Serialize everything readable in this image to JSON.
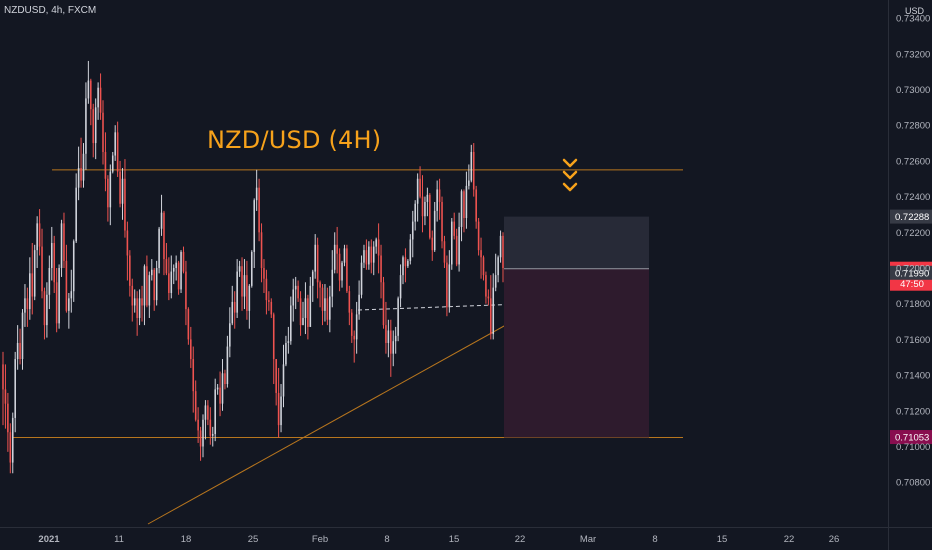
{
  "header": {
    "symbol": "NZDUSD, 4h, FXCM",
    "currency": "USD"
  },
  "annotation": {
    "title": "NZD/USD (4H)"
  },
  "chart_data": {
    "type": "candlestick",
    "yaxis": {
      "range": [
        0.7066,
        0.7329
      ],
      "ticks": [
        "0.73200",
        "0.73000",
        "0.72800",
        "0.72600",
        "0.72400",
        "0.72200",
        "0.72000",
        "0.71800",
        "0.71600",
        "0.71400",
        "0.71200",
        "0.71000",
        "0.70800"
      ],
      "top_partial_label": "0.73400"
    },
    "xaxis": {
      "ticks": [
        "2021",
        "11",
        "18",
        "25",
        "Feb",
        "8",
        "15",
        "22",
        "Mar",
        "8",
        "15",
        "22",
        "26"
      ]
    },
    "price_labels": [
      {
        "text": "0.72288",
        "price": 0.72288,
        "bg": "#363a45",
        "color": "#ffffff"
      },
      {
        "text": "0.71996",
        "price": 0.71996,
        "bg": "#f23645",
        "color": "#ffffff"
      },
      {
        "text": "47:50",
        "price": 0.71996,
        "bg": "#f23645",
        "color": "#ffffff",
        "below": true
      },
      {
        "text": "0.71990",
        "price": 0.7199,
        "bg": "#363a45",
        "color": "#ffffff",
        "nudge": 20
      },
      {
        "text": "0.71053",
        "price": 0.71053,
        "bg": "#880e4f",
        "color": "#ffffff"
      }
    ],
    "levels": {
      "resistance": 0.7255,
      "support": 0.71053,
      "entry": 0.71996,
      "target_top": 0.72288
    },
    "colors": {
      "up": "#d1d4dc",
      "down": "#ef5350",
      "bg": "#131722",
      "level": "#b8761e",
      "arrow": "#f7a21b"
    },
    "candles": [
      [
        0.7146,
        0.7132,
        0.7153,
        0.7112
      ],
      [
        0.7132,
        0.7124,
        0.7146,
        0.711
      ],
      [
        0.7124,
        0.7108,
        0.713,
        0.7097
      ],
      [
        0.7108,
        0.7091,
        0.7113,
        0.7085
      ],
      [
        0.7091,
        0.7116,
        0.7119,
        0.7085
      ],
      [
        0.7116,
        0.7149,
        0.7153,
        0.7108
      ],
      [
        0.7149,
        0.7158,
        0.7168,
        0.7143
      ],
      [
        0.7158,
        0.7149,
        0.7166,
        0.7146
      ],
      [
        0.7149,
        0.7175,
        0.7177,
        0.7143
      ],
      [
        0.7175,
        0.7183,
        0.7191,
        0.7167
      ],
      [
        0.7183,
        0.7177,
        0.7189,
        0.7167
      ],
      [
        0.7177,
        0.7197,
        0.7206,
        0.7171
      ],
      [
        0.7197,
        0.7184,
        0.7214,
        0.7174
      ],
      [
        0.7184,
        0.721,
        0.7213,
        0.7182
      ],
      [
        0.721,
        0.7225,
        0.7229,
        0.72
      ],
      [
        0.7225,
        0.7212,
        0.7233,
        0.7207
      ],
      [
        0.7212,
        0.7187,
        0.7222,
        0.7183
      ],
      [
        0.7187,
        0.7168,
        0.7189,
        0.716
      ],
      [
        0.7168,
        0.7185,
        0.7192,
        0.7161
      ],
      [
        0.7185,
        0.72,
        0.7207,
        0.7177
      ],
      [
        0.72,
        0.7214,
        0.7223,
        0.7193
      ],
      [
        0.7214,
        0.7192,
        0.7218,
        0.7186
      ],
      [
        0.7192,
        0.7169,
        0.72,
        0.7164
      ],
      [
        0.7169,
        0.72,
        0.7202,
        0.7166
      ],
      [
        0.72,
        0.7225,
        0.7227,
        0.7195
      ],
      [
        0.7225,
        0.7204,
        0.7231,
        0.72
      ],
      [
        0.7204,
        0.7176,
        0.7213,
        0.7175
      ],
      [
        0.7176,
        0.7183,
        0.7186,
        0.7166
      ],
      [
        0.7183,
        0.7187,
        0.7199,
        0.7175
      ],
      [
        0.7187,
        0.7215,
        0.7216,
        0.7181
      ],
      [
        0.7215,
        0.7245,
        0.7253,
        0.7214
      ],
      [
        0.7245,
        0.7256,
        0.7268,
        0.7238
      ],
      [
        0.7256,
        0.7249,
        0.7273,
        0.7245
      ],
      [
        0.7249,
        0.7264,
        0.727,
        0.7245
      ],
      [
        0.7264,
        0.7295,
        0.7304,
        0.7255
      ],
      [
        0.7295,
        0.7305,
        0.7316,
        0.7292
      ],
      [
        0.7305,
        0.7289,
        0.7306,
        0.728
      ],
      [
        0.7289,
        0.727,
        0.7292,
        0.7262
      ],
      [
        0.727,
        0.729,
        0.7295,
        0.7261
      ],
      [
        0.729,
        0.7301,
        0.7304,
        0.7283
      ],
      [
        0.7301,
        0.7287,
        0.7309,
        0.7283
      ],
      [
        0.7287,
        0.7265,
        0.7294,
        0.7258
      ],
      [
        0.7265,
        0.725,
        0.7276,
        0.7243
      ],
      [
        0.725,
        0.7234,
        0.7252,
        0.7226
      ],
      [
        0.7234,
        0.7254,
        0.7258,
        0.7224
      ],
      [
        0.7254,
        0.7263,
        0.7265,
        0.7253
      ],
      [
        0.7263,
        0.7276,
        0.728,
        0.726
      ],
      [
        0.7276,
        0.7254,
        0.7282,
        0.7251
      ],
      [
        0.7254,
        0.7236,
        0.726,
        0.7234
      ],
      [
        0.7236,
        0.725,
        0.7256,
        0.7227
      ],
      [
        0.725,
        0.7221,
        0.7261,
        0.7217
      ],
      [
        0.7221,
        0.7207,
        0.7226,
        0.7193
      ],
      [
        0.7207,
        0.719,
        0.721,
        0.7184
      ],
      [
        0.719,
        0.7179,
        0.7194,
        0.717
      ],
      [
        0.7179,
        0.7183,
        0.7188,
        0.7175
      ],
      [
        0.7183,
        0.7172,
        0.7187,
        0.7162
      ],
      [
        0.7172,
        0.7183,
        0.7188,
        0.7168
      ],
      [
        0.7183,
        0.7179,
        0.719,
        0.717
      ],
      [
        0.7179,
        0.7201,
        0.7202,
        0.7168
      ],
      [
        0.7201,
        0.7179,
        0.7207,
        0.7178
      ],
      [
        0.7179,
        0.7196,
        0.7198,
        0.7172
      ],
      [
        0.7196,
        0.7199,
        0.7205,
        0.7193
      ],
      [
        0.7199,
        0.7182,
        0.72,
        0.7176
      ],
      [
        0.7182,
        0.72,
        0.7204,
        0.7179
      ],
      [
        0.72,
        0.7222,
        0.7223,
        0.7197
      ],
      [
        0.7222,
        0.7231,
        0.7241,
        0.7218
      ],
      [
        0.7231,
        0.7205,
        0.7232,
        0.7196
      ],
      [
        0.7205,
        0.7197,
        0.7214,
        0.7196
      ],
      [
        0.7197,
        0.7186,
        0.7206,
        0.7182
      ],
      [
        0.7186,
        0.7198,
        0.7207,
        0.7183
      ],
      [
        0.7198,
        0.72,
        0.7202,
        0.7191
      ],
      [
        0.72,
        0.7203,
        0.7207,
        0.7193
      ],
      [
        0.7203,
        0.7188,
        0.7204,
        0.7185
      ],
      [
        0.7188,
        0.7209,
        0.721,
        0.7186
      ],
      [
        0.7209,
        0.7198,
        0.7212,
        0.7197
      ],
      [
        0.7198,
        0.7177,
        0.7204,
        0.7168
      ],
      [
        0.7177,
        0.716,
        0.7178,
        0.7157
      ],
      [
        0.716,
        0.7149,
        0.7167,
        0.7144
      ],
      [
        0.7149,
        0.7131,
        0.7156,
        0.7119
      ],
      [
        0.7131,
        0.7115,
        0.7137,
        0.7114
      ],
      [
        0.7115,
        0.7109,
        0.7122,
        0.7102
      ],
      [
        0.7109,
        0.71,
        0.7111,
        0.7092
      ],
      [
        0.71,
        0.7115,
        0.7118,
        0.7094
      ],
      [
        0.7115,
        0.7123,
        0.7126,
        0.7104
      ],
      [
        0.7123,
        0.7115,
        0.7126,
        0.7112
      ],
      [
        0.7115,
        0.7106,
        0.7122,
        0.7101
      ],
      [
        0.7106,
        0.7107,
        0.7111,
        0.71
      ],
      [
        0.7107,
        0.7132,
        0.7138,
        0.7103
      ],
      [
        0.7132,
        0.7133,
        0.7135,
        0.7129
      ],
      [
        0.7133,
        0.7124,
        0.7142,
        0.7117
      ],
      [
        0.7124,
        0.7141,
        0.7149,
        0.712
      ],
      [
        0.7141,
        0.7135,
        0.7143,
        0.7132
      ],
      [
        0.7135,
        0.7156,
        0.7162,
        0.7133
      ],
      [
        0.7156,
        0.7169,
        0.7178,
        0.715
      ],
      [
        0.7169,
        0.7181,
        0.719,
        0.7168
      ],
      [
        0.7181,
        0.7175,
        0.7187,
        0.7166
      ],
      [
        0.7175,
        0.7198,
        0.7205,
        0.7172
      ],
      [
        0.7198,
        0.7201,
        0.7204,
        0.7195
      ],
      [
        0.7201,
        0.7184,
        0.7206,
        0.7176
      ],
      [
        0.7184,
        0.7196,
        0.7205,
        0.7177
      ],
      [
        0.7196,
        0.7176,
        0.7204,
        0.7171
      ],
      [
        0.7176,
        0.719,
        0.7191,
        0.7166
      ],
      [
        0.719,
        0.7209,
        0.721,
        0.7189
      ],
      [
        0.7209,
        0.7238,
        0.7239,
        0.72
      ],
      [
        0.7238,
        0.7245,
        0.7255,
        0.7232
      ],
      [
        0.7245,
        0.722,
        0.725,
        0.7215
      ],
      [
        0.722,
        0.72,
        0.7225,
        0.7192
      ],
      [
        0.72,
        0.7194,
        0.7205,
        0.7186
      ],
      [
        0.7194,
        0.7182,
        0.7199,
        0.7174
      ],
      [
        0.7182,
        0.7181,
        0.7187,
        0.7176
      ],
      [
        0.7181,
        0.7174,
        0.7183,
        0.7172
      ],
      [
        0.7174,
        0.7149,
        0.7175,
        0.7135
      ],
      [
        0.7149,
        0.713,
        0.7149,
        0.7123
      ],
      [
        0.713,
        0.7112,
        0.7144,
        0.7105
      ],
      [
        0.7112,
        0.7128,
        0.7135,
        0.7108
      ],
      [
        0.7128,
        0.7146,
        0.7157,
        0.7122
      ],
      [
        0.7146,
        0.7158,
        0.7162,
        0.7145
      ],
      [
        0.7158,
        0.7159,
        0.7167,
        0.7152
      ],
      [
        0.7159,
        0.7179,
        0.7184,
        0.7157
      ],
      [
        0.7179,
        0.7188,
        0.7194,
        0.717
      ],
      [
        0.7188,
        0.719,
        0.7195,
        0.7177
      ],
      [
        0.719,
        0.7183,
        0.7193,
        0.7181
      ],
      [
        0.7183,
        0.7168,
        0.7187,
        0.7162
      ],
      [
        0.7168,
        0.7172,
        0.7181,
        0.7168
      ],
      [
        0.7172,
        0.7183,
        0.7192,
        0.7163
      ],
      [
        0.7183,
        0.7167,
        0.7185,
        0.716
      ],
      [
        0.7167,
        0.719,
        0.7195,
        0.7167
      ],
      [
        0.719,
        0.7198,
        0.7199,
        0.7181
      ],
      [
        0.7198,
        0.7213,
        0.7219,
        0.7194
      ],
      [
        0.7213,
        0.7192,
        0.7217,
        0.7183
      ],
      [
        0.7192,
        0.7189,
        0.7193,
        0.7178
      ],
      [
        0.7189,
        0.7176,
        0.7191,
        0.7168
      ],
      [
        0.7176,
        0.7183,
        0.7191,
        0.717
      ],
      [
        0.7183,
        0.7171,
        0.7189,
        0.7168
      ],
      [
        0.7171,
        0.7184,
        0.719,
        0.7164
      ],
      [
        0.7184,
        0.7199,
        0.721,
        0.7178
      ],
      [
        0.7199,
        0.7213,
        0.722,
        0.7197
      ],
      [
        0.7213,
        0.7208,
        0.7223,
        0.7197
      ],
      [
        0.7208,
        0.7193,
        0.7211,
        0.7187
      ],
      [
        0.7193,
        0.7203,
        0.7204,
        0.7189
      ],
      [
        0.7203,
        0.7211,
        0.7213,
        0.7201
      ],
      [
        0.7211,
        0.7187,
        0.7213,
        0.7186
      ],
      [
        0.7187,
        0.7175,
        0.719,
        0.7168
      ],
      [
        0.7175,
        0.7162,
        0.7177,
        0.7158
      ],
      [
        0.7162,
        0.716,
        0.7165,
        0.7147
      ],
      [
        0.716,
        0.7174,
        0.7181,
        0.7152
      ],
      [
        0.7174,
        0.7185,
        0.7193,
        0.7171
      ],
      [
        0.7185,
        0.7203,
        0.7207,
        0.7183
      ],
      [
        0.7203,
        0.721,
        0.7213,
        0.72
      ],
      [
        0.721,
        0.7202,
        0.7216,
        0.7199
      ],
      [
        0.7202,
        0.7212,
        0.7215,
        0.7199
      ],
      [
        0.7212,
        0.7203,
        0.7216,
        0.7197
      ],
      [
        0.7203,
        0.7212,
        0.7215,
        0.7196
      ],
      [
        0.7212,
        0.7216,
        0.7217,
        0.7208
      ],
      [
        0.7216,
        0.7207,
        0.7225,
        0.7197
      ],
      [
        0.7207,
        0.7192,
        0.7213,
        0.7183
      ],
      [
        0.7192,
        0.7168,
        0.7195,
        0.7166
      ],
      [
        0.7168,
        0.7158,
        0.7181,
        0.7152
      ],
      [
        0.7158,
        0.7165,
        0.7171,
        0.715
      ],
      [
        0.7165,
        0.7152,
        0.7171,
        0.7139
      ],
      [
        0.7152,
        0.7159,
        0.7165,
        0.7145
      ],
      [
        0.7159,
        0.7162,
        0.7167,
        0.7152
      ],
      [
        0.7162,
        0.7183,
        0.7184,
        0.7159
      ],
      [
        0.7183,
        0.7196,
        0.7202,
        0.7178
      ],
      [
        0.7196,
        0.7206,
        0.7207,
        0.7191
      ],
      [
        0.7206,
        0.7201,
        0.7211,
        0.7192
      ],
      [
        0.7201,
        0.7204,
        0.7205,
        0.72
      ],
      [
        0.7204,
        0.7216,
        0.7219,
        0.7202
      ],
      [
        0.7216,
        0.7226,
        0.7232,
        0.7206
      ],
      [
        0.7226,
        0.7236,
        0.7238,
        0.7221
      ],
      [
        0.7236,
        0.725,
        0.7253,
        0.7226
      ],
      [
        0.725,
        0.724,
        0.7257,
        0.7239
      ],
      [
        0.724,
        0.7229,
        0.7252,
        0.722
      ],
      [
        0.7229,
        0.7237,
        0.724,
        0.7224
      ],
      [
        0.7237,
        0.7241,
        0.7245,
        0.7229
      ],
      [
        0.7241,
        0.7217,
        0.7242,
        0.7216
      ],
      [
        0.7217,
        0.721,
        0.7221,
        0.7204
      ],
      [
        0.721,
        0.7232,
        0.7237,
        0.7209
      ],
      [
        0.7232,
        0.7244,
        0.7249,
        0.7226
      ],
      [
        0.7244,
        0.7237,
        0.725,
        0.7227
      ],
      [
        0.7237,
        0.7215,
        0.724,
        0.7211
      ],
      [
        0.7215,
        0.7203,
        0.7218,
        0.72
      ],
      [
        0.7203,
        0.7178,
        0.7207,
        0.7173
      ],
      [
        0.7178,
        0.7202,
        0.721,
        0.7175
      ],
      [
        0.7202,
        0.7226,
        0.7228,
        0.7199
      ],
      [
        0.7226,
        0.7218,
        0.7231,
        0.7216
      ],
      [
        0.7218,
        0.7202,
        0.7222,
        0.7201
      ],
      [
        0.7202,
        0.7223,
        0.7231,
        0.7198
      ],
      [
        0.7223,
        0.7243,
        0.7244,
        0.7215
      ],
      [
        0.7243,
        0.7228,
        0.7244,
        0.722
      ],
      [
        0.7228,
        0.7246,
        0.7254,
        0.7222
      ],
      [
        0.7246,
        0.7249,
        0.7258,
        0.7244
      ],
      [
        0.7249,
        0.7265,
        0.7269,
        0.7248
      ],
      [
        0.7265,
        0.7244,
        0.727,
        0.724
      ],
      [
        0.7244,
        0.7226,
        0.7246,
        0.7222
      ],
      [
        0.7226,
        0.721,
        0.7228,
        0.7207
      ],
      [
        0.721,
        0.7206,
        0.7217,
        0.7194
      ],
      [
        0.7206,
        0.7196,
        0.7207,
        0.7193
      ],
      [
        0.7196,
        0.7184,
        0.7198,
        0.718
      ],
      [
        0.7184,
        0.7183,
        0.7188,
        0.7179
      ],
      [
        0.7183,
        0.7163,
        0.7196,
        0.716
      ],
      [
        0.7163,
        0.7189,
        0.7197,
        0.716
      ],
      [
        0.7189,
        0.7196,
        0.7208,
        0.7187
      ],
      [
        0.7196,
        0.7206,
        0.7207,
        0.7192
      ],
      [
        0.7206,
        0.7218,
        0.7221,
        0.7203
      ],
      [
        0.7218,
        0.72,
        0.722,
        0.7192
      ]
    ]
  }
}
